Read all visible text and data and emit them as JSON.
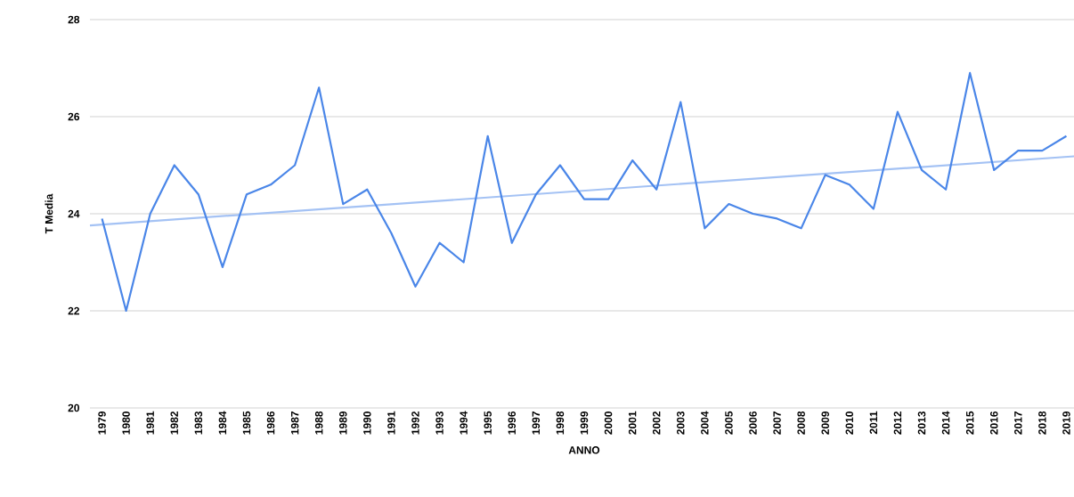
{
  "chart_data": {
    "type": "line",
    "xlabel": "ANNO",
    "ylabel": "T Media",
    "x": [
      1979,
      1980,
      1981,
      1982,
      1983,
      1984,
      1985,
      1986,
      1987,
      1988,
      1989,
      1990,
      1991,
      1992,
      1993,
      1994,
      1995,
      1996,
      1997,
      1998,
      1999,
      2000,
      2001,
      2002,
      2003,
      2004,
      2005,
      2006,
      2007,
      2008,
      2009,
      2010,
      2011,
      2012,
      2013,
      2014,
      2015,
      2016,
      2017,
      2018,
      2019
    ],
    "xlim": [
      1978.5,
      2019.5
    ],
    "xticks": [
      1979,
      1980,
      1981,
      1982,
      1983,
      1984,
      1985,
      1986,
      1987,
      1988,
      1989,
      1990,
      1991,
      1992,
      1993,
      1994,
      1995,
      1996,
      1997,
      1998,
      1999,
      2000,
      2001,
      2002,
      2003,
      2004,
      2005,
      2006,
      2007,
      2008,
      2009,
      2010,
      2011,
      2012,
      2013,
      2014,
      2015,
      2016,
      2017,
      2018,
      2019
    ],
    "ylim": [
      20,
      28
    ],
    "yticks": [
      20,
      22,
      24,
      26,
      28
    ],
    "grid": "y",
    "marker": "none",
    "line_style": "solid",
    "series": [
      {
        "color": "#4a86e8",
        "values": [
          23.9,
          22.0,
          24.0,
          25.0,
          24.4,
          22.9,
          24.4,
          24.6,
          25.0,
          26.6,
          24.2,
          24.5,
          23.6,
          22.5,
          23.4,
          23.0,
          25.6,
          23.4,
          24.4,
          25.0,
          24.3,
          24.3,
          25.1,
          24.5,
          26.3,
          23.7,
          24.2,
          24.0,
          23.9,
          23.7,
          24.8,
          24.6,
          24.1,
          26.1,
          24.9,
          24.5,
          26.9,
          24.9,
          25.3,
          25.3,
          25.6
        ]
      },
      {
        "type": "line",
        "color": "#a4c2f4",
        "x": [
          1978.5,
          2019.5
        ],
        "values": [
          23.76,
          25.19
        ]
      }
    ]
  }
}
